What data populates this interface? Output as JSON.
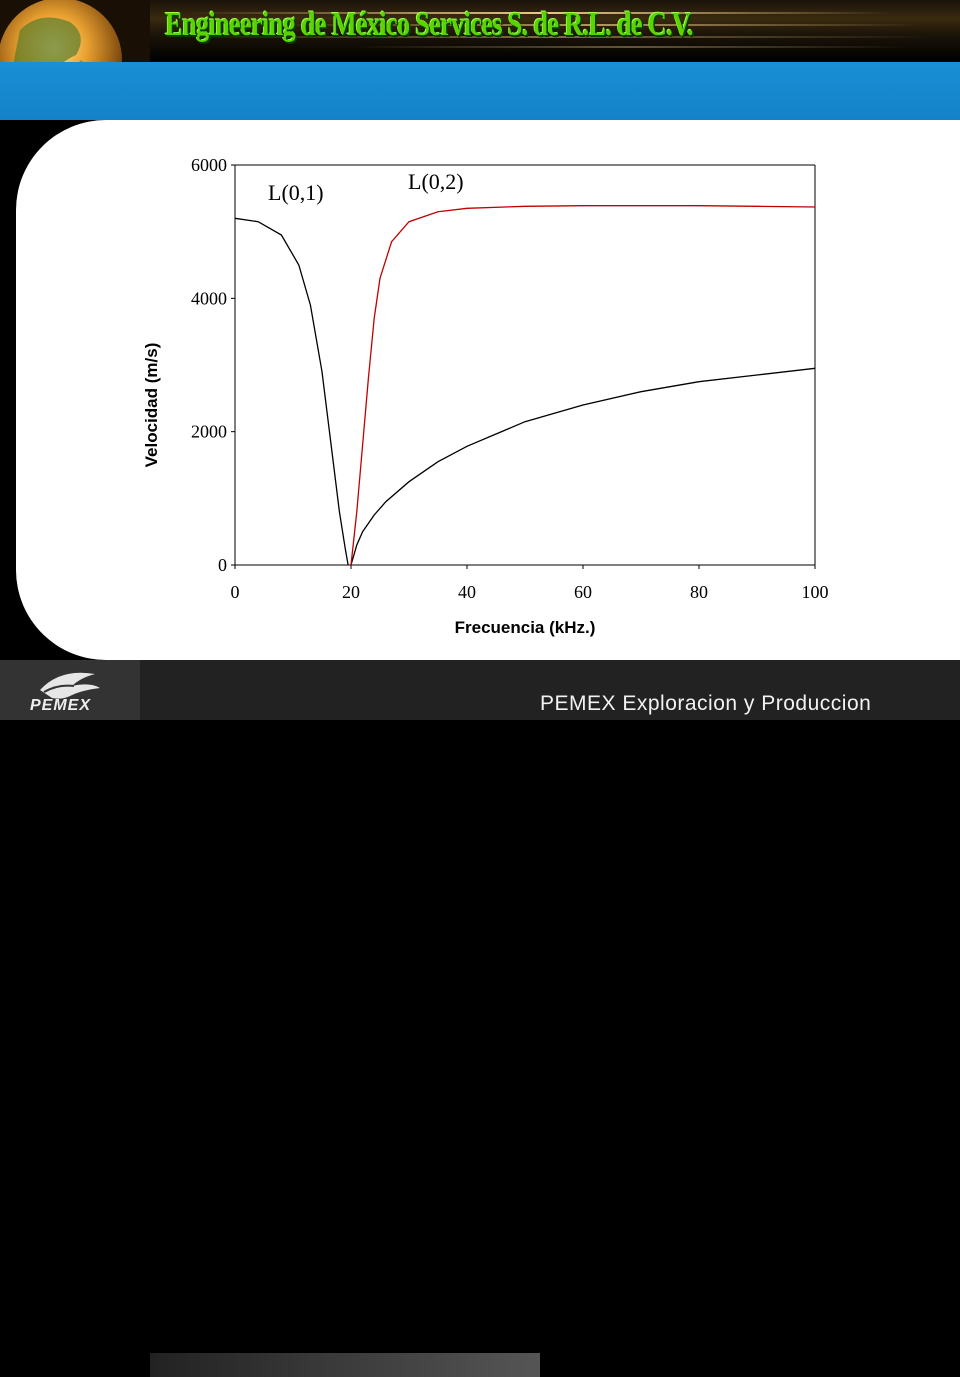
{
  "header": {
    "title": "Engineering de México Services S. de R.L. de C.V."
  },
  "footer": {
    "brand": "PEMEX",
    "text": "PEMEX Exploracion y Produccion"
  },
  "colors": {
    "blue_band": "#1a8fd6",
    "title_green": "#59d400",
    "curve_L01": "#000000",
    "curve_L02": "#c00000"
  },
  "chart_data": {
    "type": "line",
    "xlabel": "Frecuencia (kHz.)",
    "ylabel": "Velocidad (m/s)",
    "xlim": [
      0,
      100
    ],
    "ylim": [
      0,
      6000
    ],
    "x_ticks": [
      "0",
      "20",
      "40",
      "60",
      "80",
      "100"
    ],
    "x_tick_values": [
      0,
      20,
      40,
      60,
      80,
      100
    ],
    "y_ticks": [
      "0",
      "2000",
      "4000",
      "6000"
    ],
    "y_tick_values": [
      0,
      2000,
      4000,
      6000
    ],
    "annotations": [
      "L(0,1)",
      "L(0,2)"
    ],
    "series": [
      {
        "name": "L(0,1)",
        "color": "#000000",
        "x": [
          0,
          4,
          8,
          11,
          13,
          15,
          16,
          17,
          18,
          19,
          19.5
        ],
        "y": [
          5200,
          5150,
          4950,
          4500,
          3900,
          2900,
          2200,
          1500,
          800,
          250,
          0
        ]
      },
      {
        "name": "L(0,1)",
        "color": "#000000",
        "x": [
          20,
          21,
          22,
          24,
          26,
          30,
          35,
          40,
          50,
          60,
          70,
          80,
          90,
          100
        ],
        "y": [
          0,
          300,
          500,
          750,
          950,
          1250,
          1550,
          1780,
          2150,
          2400,
          2600,
          2750,
          2850,
          2950
        ]
      },
      {
        "name": "L(0,2)",
        "color": "#c00000",
        "x": [
          20,
          21,
          22,
          23,
          24,
          25,
          27,
          30,
          35,
          40,
          50,
          60,
          70,
          80,
          90,
          100
        ],
        "y": [
          0,
          800,
          1800,
          2800,
          3700,
          4300,
          4850,
          5150,
          5300,
          5350,
          5380,
          5390,
          5390,
          5390,
          5380,
          5370
        ]
      }
    ]
  }
}
